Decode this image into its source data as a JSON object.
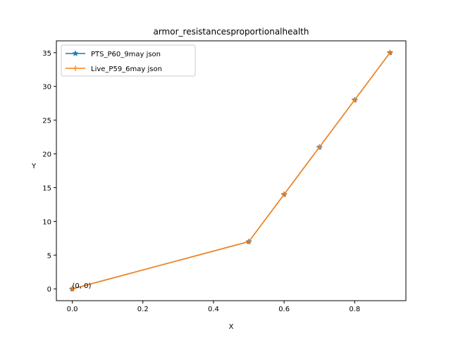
{
  "chart_data": {
    "type": "line",
    "title": "armor_resistancesproportionalhealth",
    "xlabel": "X",
    "ylabel": "Y",
    "xlim": [
      -0.045,
      0.945
    ],
    "ylim": [
      -1.75,
      36.75
    ],
    "xticks": [
      0.0,
      0.2,
      0.4,
      0.6,
      0.8
    ],
    "xtick_labels": [
      "0.0",
      "0.2",
      "0.4",
      "0.6",
      "0.8"
    ],
    "yticks": [
      0,
      5,
      10,
      15,
      20,
      25,
      30,
      35
    ],
    "ytick_labels": [
      "0",
      "5",
      "10",
      "15",
      "20",
      "25",
      "30",
      "35"
    ],
    "grid": false,
    "legend_position": "upper-left",
    "series": [
      {
        "name": "PTS_P60_9may json",
        "color": "#1f77b4",
        "marker": "star",
        "x": [
          0.0,
          0.5,
          0.6,
          0.7,
          0.8,
          0.9
        ],
        "y": [
          0,
          7,
          14,
          21,
          28,
          35
        ]
      },
      {
        "name": "Live_P59_6may json",
        "color": "#ff7f0e",
        "marker": "plus",
        "x": [
          0.0,
          0.5,
          0.6,
          0.7,
          0.8,
          0.9
        ],
        "y": [
          0,
          7,
          14,
          21,
          28,
          35
        ]
      }
    ],
    "annotations": [
      {
        "text": "(0, 0)",
        "x": 0.0,
        "y": 0.0
      }
    ]
  }
}
